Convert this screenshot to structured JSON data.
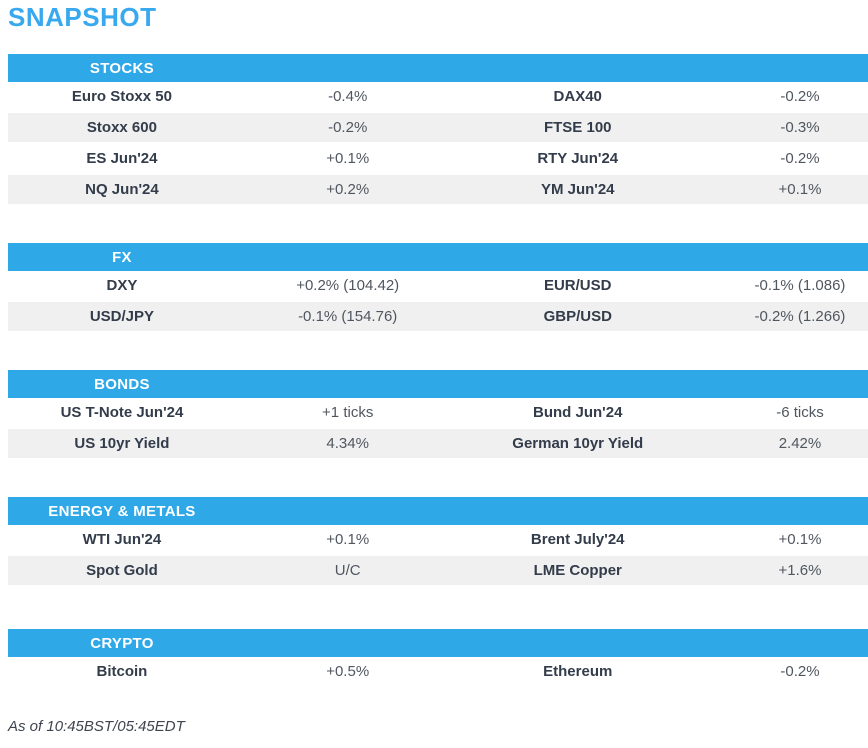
{
  "page": {
    "title": "SNAPSHOT",
    "footer": "As of 10:45BST/05:45EDT"
  },
  "colors": {
    "accent_blue": "#2fa8e8",
    "title_blue": "#38a9ef",
    "label_text": "#333c4a",
    "value_text": "#50565f",
    "row_alt_bg": "#f0f0f0",
    "footer_text": "#3e4450"
  },
  "sections": [
    {
      "name": "STOCKS",
      "rows": [
        {
          "cells": [
            "Euro Stoxx 50",
            "-0.4%",
            "DAX40",
            "-0.2%"
          ]
        },
        {
          "cells": [
            "Stoxx 600",
            "-0.2%",
            "FTSE 100",
            "-0.3%"
          ]
        },
        {
          "cells": [
            "ES Jun'24",
            "+0.1%",
            "RTY Jun'24",
            "-0.2%"
          ]
        },
        {
          "cells": [
            "NQ Jun'24",
            "+0.2%",
            "YM Jun'24",
            "+0.1%"
          ]
        }
      ]
    },
    {
      "name": "FX",
      "rows": [
        {
          "cells": [
            "DXY",
            "+0.2% (104.42)",
            "EUR/USD",
            "-0.1% (1.086)"
          ]
        },
        {
          "cells": [
            "USD/JPY",
            "-0.1% (154.76)",
            "GBP/USD",
            "-0.2% (1.266)"
          ]
        }
      ]
    },
    {
      "name": "BONDS",
      "rows": [
        {
          "cells": [
            "US T-Note Jun'24",
            "+1 ticks",
            "Bund Jun'24",
            "-6 ticks"
          ]
        },
        {
          "cells": [
            "US 10yr Yield",
            "4.34%",
            "German 10yr Yield",
            "2.42%"
          ]
        }
      ]
    },
    {
      "name": "ENERGY & METALS",
      "rows": [
        {
          "cells": [
            "WTI Jun'24",
            "+0.1%",
            "Brent July'24",
            "+0.1%"
          ]
        },
        {
          "cells": [
            "Spot Gold",
            "U/C",
            "LME Copper",
            "+1.6%"
          ]
        }
      ]
    },
    {
      "name": "CRYPTO",
      "rows": [
        {
          "cells": [
            "Bitcoin",
            "+0.5%",
            "Ethereum",
            "-0.2%"
          ]
        }
      ]
    }
  ]
}
